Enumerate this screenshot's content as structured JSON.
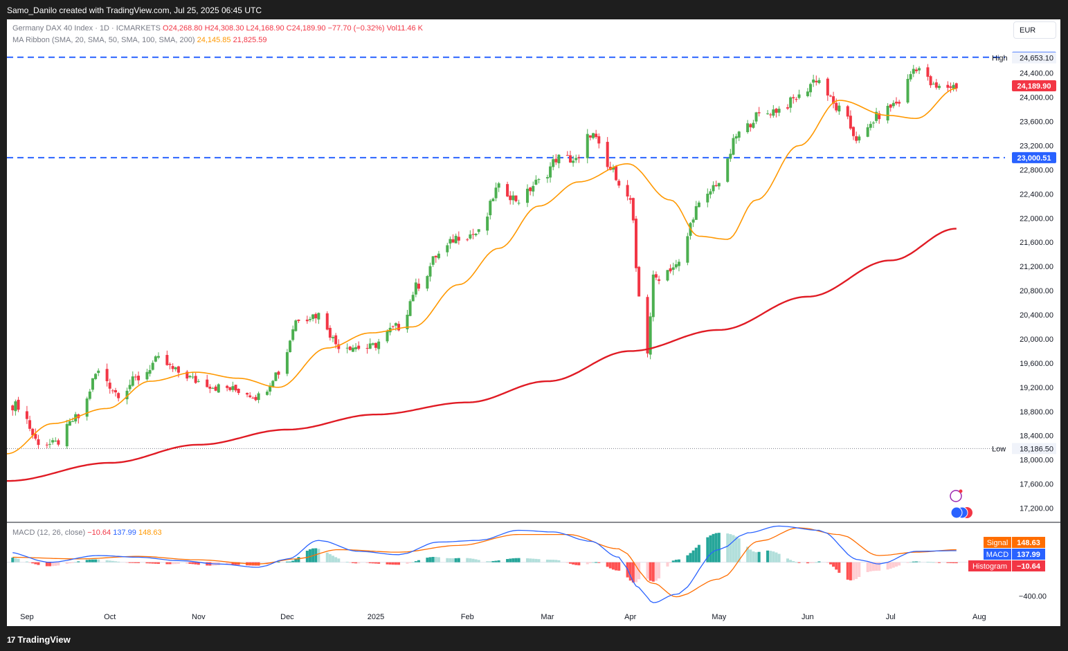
{
  "header": {
    "attribution": "Samo_Danilo created with TradingView.com, Jul 25, 2025 06:45 UTC"
  },
  "legend": {
    "symbol": "Germany DAX 40 Index · 1D · ICMARKETS",
    "open": "O24,268.80",
    "high": "H24,308.30",
    "low": "L24,168.90",
    "close": "C24,189.90",
    "change": "−77.70 (−0.32%)",
    "volume": "Vol11.46 K",
    "ma_title": "MA Ribbon (SMA, 20, SMA, 50, SMA, 100, SMA, 200)",
    "ma_value_1": "24,145.85",
    "ma_value_2": "21,825.59",
    "macd_title": "MACD (12, 26, close)",
    "macd_hist": "−10.64",
    "macd_line": "137.99",
    "macd_signal": "148.63"
  },
  "currency": "EUR",
  "branding": {
    "logo_text": "TradingView",
    "logo_mark": "17"
  },
  "colors": {
    "up": "#26a69a",
    "up_candle": "#4caf50",
    "down": "#f23645",
    "ma20": "#ff9800",
    "ma200": "#e01b24",
    "macd": "#2962ff",
    "signal": "#ff6d00",
    "level": "#2962ff"
  },
  "chart_data": [
    {
      "type": "candlestick",
      "pane": "price",
      "y_axis_ticks": [
        "24,400.00",
        "24,000.00",
        "23,600.00",
        "23,200.00",
        "22,800.00",
        "22,400.00",
        "22,000.00",
        "21,600.00",
        "21,200.00",
        "20,800.00",
        "20,400.00",
        "20,000.00",
        "19,600.00",
        "19,200.00",
        "18,800.00",
        "18,400.00",
        "18,000.00",
        "17,600.00",
        "17,200.00"
      ],
      "ylim": [
        17000,
        24900
      ],
      "x_axis_ticks": [
        "Sep",
        "Oct",
        "Nov",
        "Dec",
        "2025",
        "Feb",
        "Mar",
        "Apr",
        "May",
        "Jun",
        "Jul",
        "Aug"
      ],
      "x_tick_dates": [
        "2024-09-02",
        "2024-10-01",
        "2024-11-01",
        "2024-12-02",
        "2025-01-02",
        "2025-02-03",
        "2025-03-03",
        "2025-04-01",
        "2025-05-02",
        "2025-06-02",
        "2025-07-01",
        "2025-08-01"
      ],
      "xlim": [
        "2024-08-26",
        "2025-08-10"
      ],
      "horizontal_levels": [
        {
          "label": "24,662.57",
          "value": 24662.57,
          "style": "dashed"
        },
        {
          "label": "23,000.51",
          "value": 23000.51,
          "style": "dashed"
        }
      ],
      "markers": [
        {
          "name": "High",
          "label": "24,653.10",
          "value": 24653.1
        },
        {
          "name": "Low",
          "label": "18,186.50",
          "value": 18186.5
        }
      ],
      "last_price": {
        "label": "24,189.90",
        "value": 24189.9
      },
      "close_anchors": [
        [
          "2024-08-30",
          18900
        ],
        [
          "2024-09-06",
          18300
        ],
        [
          "2024-09-11",
          18250
        ],
        [
          "2024-09-20",
          18700
        ],
        [
          "2024-09-27",
          19450
        ],
        [
          "2024-10-04",
          19100
        ],
        [
          "2024-10-11",
          19350
        ],
        [
          "2024-10-18",
          19650
        ],
        [
          "2024-10-25",
          19450
        ],
        [
          "2024-11-01",
          19300
        ],
        [
          "2024-11-08",
          19200
        ],
        [
          "2024-11-15",
          19150
        ],
        [
          "2024-11-22",
          19050
        ],
        [
          "2024-11-29",
          19450
        ],
        [
          "2024-12-06",
          20350
        ],
        [
          "2024-12-13",
          20400
        ],
        [
          "2024-12-20",
          19900
        ],
        [
          "2024-12-30",
          19850
        ],
        [
          "2025-01-10",
          20200
        ],
        [
          "2025-01-17",
          20900
        ],
        [
          "2025-01-24",
          21400
        ],
        [
          "2025-01-31",
          21700
        ],
        [
          "2025-02-07",
          21750
        ],
        [
          "2025-02-14",
          22500
        ],
        [
          "2025-02-21",
          22300
        ],
        [
          "2025-02-28",
          22600
        ],
        [
          "2025-03-07",
          23000
        ],
        [
          "2025-03-14",
          22950
        ],
        [
          "2025-03-18",
          23400
        ],
        [
          "2025-03-25",
          22800
        ],
        [
          "2025-04-01",
          22300
        ],
        [
          "2025-04-04",
          20700
        ],
        [
          "2025-04-07",
          19800
        ],
        [
          "2025-04-09",
          21000
        ],
        [
          "2025-04-17",
          21200
        ],
        [
          "2025-04-25",
          22200
        ],
        [
          "2025-05-02",
          22600
        ],
        [
          "2025-05-09",
          23400
        ],
        [
          "2025-05-16",
          23700
        ],
        [
          "2025-05-23",
          23800
        ],
        [
          "2025-05-30",
          24000
        ],
        [
          "2025-06-05",
          24300
        ],
        [
          "2025-06-13",
          23800
        ],
        [
          "2025-06-20",
          23300
        ],
        [
          "2025-06-27",
          23700
        ],
        [
          "2025-07-03",
          23900
        ],
        [
          "2025-07-10",
          24500
        ],
        [
          "2025-07-17",
          24150
        ],
        [
          "2025-07-24",
          24190
        ]
      ],
      "series": [
        {
          "name": "MA 20",
          "legend_value": "24,145.85",
          "anchors": [
            [
              "2024-08-26",
              18100
            ],
            [
              "2024-09-11",
              18600
            ],
            [
              "2024-09-30",
              18850
            ],
            [
              "2024-10-15",
              19300
            ],
            [
              "2024-10-31",
              19450
            ],
            [
              "2024-11-15",
              19350
            ],
            [
              "2024-11-29",
              19200
            ],
            [
              "2024-12-16",
              19850
            ],
            [
              "2024-12-31",
              20100
            ],
            [
              "2025-01-15",
              20200
            ],
            [
              "2025-01-31",
              20900
            ],
            [
              "2025-02-14",
              21500
            ],
            [
              "2025-02-28",
              22200
            ],
            [
              "2025-03-14",
              22600
            ],
            [
              "2025-03-31",
              22900
            ],
            [
              "2025-04-15",
              22300
            ],
            [
              "2025-04-25",
              21700
            ],
            [
              "2025-05-05",
              21650
            ],
            [
              "2025-05-15",
              22300
            ],
            [
              "2025-05-30",
              23200
            ],
            [
              "2025-06-13",
              23950
            ],
            [
              "2025-06-30",
              23700
            ],
            [
              "2025-07-10",
              23650
            ],
            [
              "2025-07-24",
              24146
            ]
          ]
        },
        {
          "name": "MA 200",
          "legend_value": "21,825.59",
          "anchors": [
            [
              "2024-08-26",
              17650
            ],
            [
              "2024-10-01",
              17950
            ],
            [
              "2024-11-01",
              18250
            ],
            [
              "2024-12-02",
              18500
            ],
            [
              "2025-01-02",
              18750
            ],
            [
              "2025-02-03",
              18950
            ],
            [
              "2025-03-03",
              19300
            ],
            [
              "2025-04-01",
              19800
            ],
            [
              "2025-05-02",
              20150
            ],
            [
              "2025-06-02",
              20700
            ],
            [
              "2025-07-01",
              21300
            ],
            [
              "2025-07-24",
              21826
            ]
          ]
        }
      ]
    },
    {
      "type": "line",
      "pane": "MACD",
      "y_axis_ticks": [
        "−400.00"
      ],
      "ylim": [
        -520,
        450
      ],
      "series": [
        {
          "name": "MACD",
          "legend_label": "MACD",
          "value": "137.99",
          "anchors": [
            [
              "2024-08-26",
              120
            ],
            [
              "2024-09-10",
              0
            ],
            [
              "2024-09-27",
              80
            ],
            [
              "2024-10-11",
              60
            ],
            [
              "2024-10-25",
              20
            ],
            [
              "2024-11-08",
              -20
            ],
            [
              "2024-11-22",
              -60
            ],
            [
              "2024-12-02",
              40
            ],
            [
              "2024-12-13",
              260
            ],
            [
              "2024-12-27",
              130
            ],
            [
              "2025-01-10",
              90
            ],
            [
              "2025-01-24",
              240
            ],
            [
              "2025-02-07",
              260
            ],
            [
              "2025-02-21",
              380
            ],
            [
              "2025-03-05",
              360
            ],
            [
              "2025-03-18",
              250
            ],
            [
              "2025-03-28",
              60
            ],
            [
              "2025-04-04",
              -300
            ],
            [
              "2025-04-09",
              -480
            ],
            [
              "2025-04-17",
              -380
            ],
            [
              "2025-05-02",
              150
            ],
            [
              "2025-05-12",
              350
            ],
            [
              "2025-05-23",
              430
            ],
            [
              "2025-06-06",
              380
            ],
            [
              "2025-06-20",
              30
            ],
            [
              "2025-06-27",
              -20
            ],
            [
              "2025-07-10",
              130
            ],
            [
              "2025-07-24",
              138
            ]
          ]
        },
        {
          "name": "Signal",
          "legend_label": "Signal",
          "value": "148.63",
          "anchors": [
            [
              "2024-08-26",
              60
            ],
            [
              "2024-09-20",
              40
            ],
            [
              "2024-10-11",
              70
            ],
            [
              "2024-10-31",
              30
            ],
            [
              "2024-11-22",
              -20
            ],
            [
              "2024-12-05",
              40
            ],
            [
              "2024-12-20",
              150
            ],
            [
              "2025-01-10",
              120
            ],
            [
              "2025-01-31",
              200
            ],
            [
              "2025-02-21",
              330
            ],
            [
              "2025-03-10",
              330
            ],
            [
              "2025-03-28",
              160
            ],
            [
              "2025-04-09",
              -250
            ],
            [
              "2025-04-17",
              -410
            ],
            [
              "2025-05-02",
              -200
            ],
            [
              "2025-05-16",
              250
            ],
            [
              "2025-05-30",
              410
            ],
            [
              "2025-06-13",
              330
            ],
            [
              "2025-06-27",
              80
            ],
            [
              "2025-07-10",
              120
            ],
            [
              "2025-07-24",
              149
            ]
          ]
        },
        {
          "name": "Histogram",
          "legend_label": "Histogram",
          "value": "−10.64"
        }
      ]
    }
  ]
}
